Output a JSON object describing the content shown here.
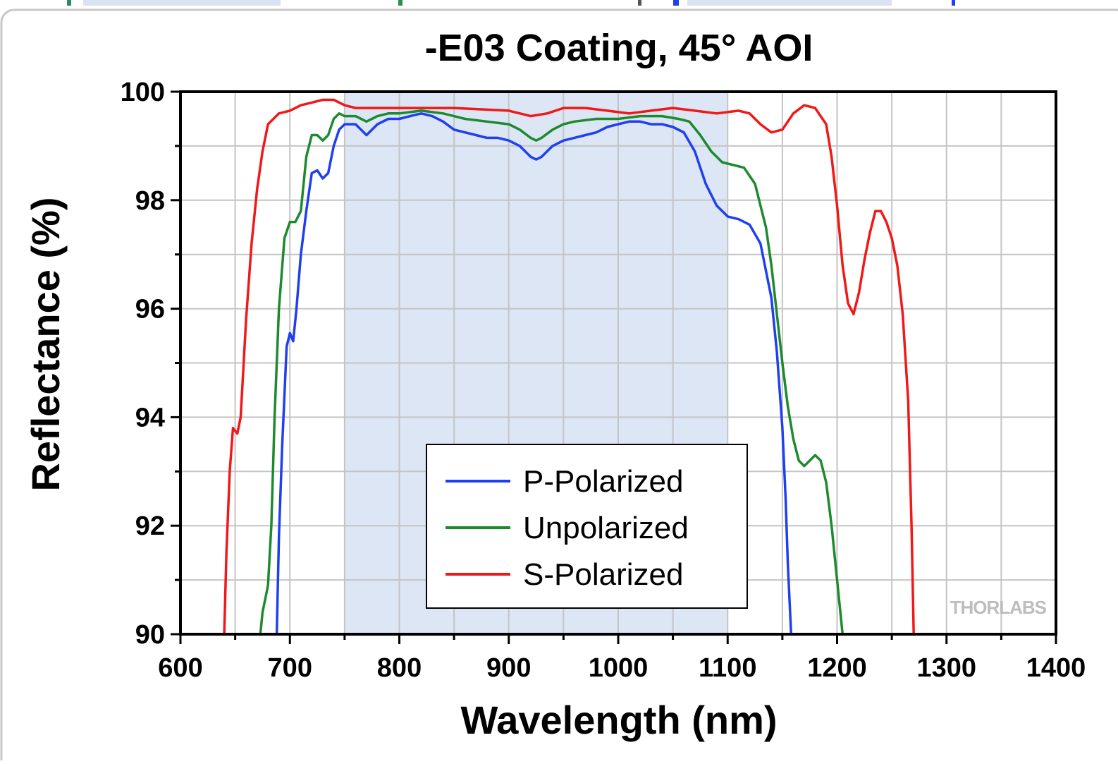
{
  "chart_data": {
    "type": "line",
    "title": "-E03 Coating, 45° AOI",
    "xlabel": "Wavelength (nm)",
    "ylabel": "Reflectance (%)",
    "xlim": [
      600,
      1400
    ],
    "ylim": [
      90,
      100
    ],
    "x_ticks": [
      600,
      700,
      800,
      900,
      1000,
      1100,
      1200,
      1300,
      1400
    ],
    "y_ticks": [
      90,
      92,
      94,
      96,
      98,
      100
    ],
    "grid": true,
    "legend_position": "bottom-center",
    "shaded_region": {
      "x_start": 750,
      "x_end": 1100,
      "color": "#dce6f4"
    },
    "logo": "THORLABS",
    "series": [
      {
        "name": "P-Polarized",
        "color": "#1f3ff0",
        "points": [
          [
            688,
            90
          ],
          [
            690,
            91.8
          ],
          [
            693,
            93.5
          ],
          [
            697,
            95.3
          ],
          [
            700,
            95.55
          ],
          [
            703,
            95.4
          ],
          [
            706,
            96
          ],
          [
            710,
            97
          ],
          [
            715,
            97.8
          ],
          [
            720,
            98.5
          ],
          [
            725,
            98.55
          ],
          [
            730,
            98.4
          ],
          [
            735,
            98.5
          ],
          [
            740,
            99
          ],
          [
            745,
            99.3
          ],
          [
            750,
            99.4
          ],
          [
            760,
            99.4
          ],
          [
            770,
            99.2
          ],
          [
            780,
            99.4
          ],
          [
            790,
            99.5
          ],
          [
            800,
            99.5
          ],
          [
            810,
            99.55
          ],
          [
            820,
            99.6
          ],
          [
            830,
            99.55
          ],
          [
            840,
            99.45
          ],
          [
            850,
            99.3
          ],
          [
            860,
            99.25
          ],
          [
            870,
            99.2
          ],
          [
            880,
            99.15
          ],
          [
            890,
            99.15
          ],
          [
            900,
            99.1
          ],
          [
            910,
            99
          ],
          [
            920,
            98.8
          ],
          [
            925,
            98.75
          ],
          [
            930,
            98.8
          ],
          [
            940,
            99
          ],
          [
            950,
            99.1
          ],
          [
            960,
            99.15
          ],
          [
            970,
            99.2
          ],
          [
            980,
            99.25
          ],
          [
            990,
            99.35
          ],
          [
            1000,
            99.4
          ],
          [
            1010,
            99.45
          ],
          [
            1020,
            99.45
          ],
          [
            1030,
            99.4
          ],
          [
            1040,
            99.4
          ],
          [
            1050,
            99.35
          ],
          [
            1060,
            99.25
          ],
          [
            1070,
            98.9
          ],
          [
            1080,
            98.3
          ],
          [
            1090,
            97.9
          ],
          [
            1100,
            97.7
          ],
          [
            1110,
            97.65
          ],
          [
            1120,
            97.55
          ],
          [
            1130,
            97.2
          ],
          [
            1140,
            96.2
          ],
          [
            1145,
            95.2
          ],
          [
            1150,
            93.8
          ],
          [
            1153,
            92.5
          ],
          [
            1155,
            91.3
          ],
          [
            1158,
            90
          ]
        ]
      },
      {
        "name": "Unpolarized",
        "color": "#1c8a2e",
        "points": [
          [
            673,
            90
          ],
          [
            675,
            90.4
          ],
          [
            680,
            90.9
          ],
          [
            683,
            92
          ],
          [
            686,
            94
          ],
          [
            690,
            96
          ],
          [
            695,
            97.3
          ],
          [
            700,
            97.6
          ],
          [
            705,
            97.6
          ],
          [
            710,
            97.8
          ],
          [
            715,
            98.8
          ],
          [
            720,
            99.2
          ],
          [
            725,
            99.2
          ],
          [
            730,
            99.1
          ],
          [
            735,
            99.2
          ],
          [
            740,
            99.5
          ],
          [
            745,
            99.6
          ],
          [
            750,
            99.55
          ],
          [
            760,
            99.55
          ],
          [
            770,
            99.45
          ],
          [
            780,
            99.55
          ],
          [
            790,
            99.6
          ],
          [
            800,
            99.6
          ],
          [
            820,
            99.65
          ],
          [
            840,
            99.6
          ],
          [
            860,
            99.5
          ],
          [
            880,
            99.45
          ],
          [
            900,
            99.4
          ],
          [
            910,
            99.3
          ],
          [
            920,
            99.15
          ],
          [
            925,
            99.1
          ],
          [
            930,
            99.15
          ],
          [
            940,
            99.3
          ],
          [
            950,
            99.4
          ],
          [
            960,
            99.45
          ],
          [
            980,
            99.5
          ],
          [
            1000,
            99.5
          ],
          [
            1020,
            99.55
          ],
          [
            1040,
            99.55
          ],
          [
            1055,
            99.5
          ],
          [
            1065,
            99.45
          ],
          [
            1075,
            99.2
          ],
          [
            1085,
            98.9
          ],
          [
            1095,
            98.7
          ],
          [
            1105,
            98.65
          ],
          [
            1115,
            98.6
          ],
          [
            1125,
            98.3
          ],
          [
            1135,
            97.5
          ],
          [
            1140,
            96.8
          ],
          [
            1145,
            95.9
          ],
          [
            1150,
            95
          ],
          [
            1155,
            94.2
          ],
          [
            1160,
            93.6
          ],
          [
            1165,
            93.2
          ],
          [
            1170,
            93.1
          ],
          [
            1175,
            93.2
          ],
          [
            1180,
            93.3
          ],
          [
            1185,
            93.2
          ],
          [
            1190,
            92.8
          ],
          [
            1195,
            92
          ],
          [
            1200,
            91
          ],
          [
            1205,
            90
          ]
        ]
      },
      {
        "name": "S-Polarized",
        "color": "#f01818",
        "points": [
          [
            640,
            90
          ],
          [
            642,
            91.5
          ],
          [
            645,
            93
          ],
          [
            648,
            93.8
          ],
          [
            652,
            93.7
          ],
          [
            655,
            94
          ],
          [
            660,
            95.8
          ],
          [
            665,
            97.2
          ],
          [
            670,
            98.2
          ],
          [
            675,
            98.9
          ],
          [
            680,
            99.4
          ],
          [
            690,
            99.6
          ],
          [
            700,
            99.65
          ],
          [
            710,
            99.75
          ],
          [
            720,
            99.8
          ],
          [
            730,
            99.85
          ],
          [
            740,
            99.85
          ],
          [
            750,
            99.75
          ],
          [
            760,
            99.7
          ],
          [
            780,
            99.7
          ],
          [
            800,
            99.7
          ],
          [
            850,
            99.7
          ],
          [
            900,
            99.65
          ],
          [
            920,
            99.55
          ],
          [
            935,
            99.6
          ],
          [
            950,
            99.7
          ],
          [
            970,
            99.7
          ],
          [
            990,
            99.65
          ],
          [
            1010,
            99.6
          ],
          [
            1030,
            99.65
          ],
          [
            1050,
            99.7
          ],
          [
            1070,
            99.65
          ],
          [
            1090,
            99.6
          ],
          [
            1110,
            99.65
          ],
          [
            1120,
            99.6
          ],
          [
            1130,
            99.4
          ],
          [
            1140,
            99.25
          ],
          [
            1150,
            99.3
          ],
          [
            1160,
            99.6
          ],
          [
            1170,
            99.75
          ],
          [
            1180,
            99.7
          ],
          [
            1190,
            99.4
          ],
          [
            1195,
            98.8
          ],
          [
            1200,
            97.9
          ],
          [
            1205,
            96.8
          ],
          [
            1210,
            96.1
          ],
          [
            1215,
            95.9
          ],
          [
            1220,
            96.3
          ],
          [
            1225,
            96.9
          ],
          [
            1230,
            97.4
          ],
          [
            1235,
            97.8
          ],
          [
            1240,
            97.8
          ],
          [
            1245,
            97.6
          ],
          [
            1250,
            97.3
          ],
          [
            1255,
            96.8
          ],
          [
            1260,
            95.9
          ],
          [
            1265,
            94.3
          ],
          [
            1268,
            92
          ],
          [
            1270,
            90
          ]
        ]
      }
    ]
  }
}
